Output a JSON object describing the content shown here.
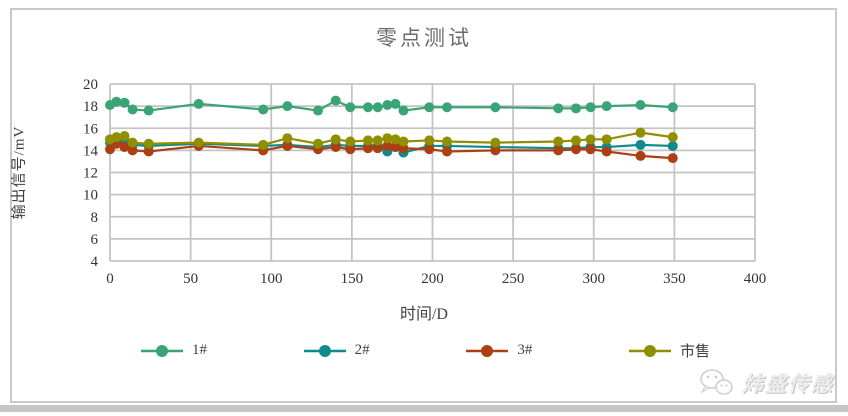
{
  "chart_data": {
    "type": "line",
    "title": "零点测试",
    "xlabel": "时间/D",
    "ylabel": "输出信号/mV",
    "xlim": [
      0,
      400
    ],
    "ylim": [
      4,
      20
    ],
    "xticks": [
      0,
      50,
      100,
      150,
      200,
      250,
      300,
      350,
      400
    ],
    "yticks": [
      4,
      6,
      8,
      10,
      12,
      14,
      16,
      18,
      20
    ],
    "grid": true,
    "legend_position": "bottom",
    "x": [
      0,
      4,
      9,
      14,
      24,
      55,
      95,
      110,
      129,
      140,
      149,
      160,
      166,
      172,
      177,
      182,
      198,
      209,
      239,
      278,
      289,
      298,
      308,
      329,
      349
    ],
    "series": [
      {
        "name": "1#",
        "color": "#3BA476",
        "values": [
          18.1,
          18.4,
          18.3,
          17.7,
          17.6,
          18.2,
          17.7,
          18.0,
          17.6,
          18.5,
          17.9,
          17.9,
          17.9,
          18.1,
          18.2,
          17.6,
          17.9,
          17.9,
          17.9,
          17.8,
          17.8,
          17.9,
          18.0,
          18.1,
          17.9
        ]
      },
      {
        "name": "2#",
        "color": "#0F8A8D",
        "values": [
          14.7,
          14.8,
          14.6,
          14.5,
          14.4,
          14.6,
          14.4,
          14.5,
          14.3,
          14.5,
          14.4,
          14.4,
          14.4,
          13.9,
          14.3,
          13.8,
          14.4,
          14.4,
          14.3,
          14.2,
          14.2,
          14.3,
          14.3,
          14.5,
          14.4
        ]
      },
      {
        "name": "3#",
        "color": "#AC4013",
        "values": [
          14.1,
          14.6,
          14.3,
          14.0,
          13.9,
          14.4,
          14.0,
          14.4,
          14.1,
          14.3,
          14.1,
          14.2,
          14.2,
          14.4,
          14.3,
          14.2,
          14.1,
          13.9,
          14.0,
          14.0,
          14.1,
          14.1,
          13.9,
          13.5,
          13.3
        ]
      },
      {
        "name": "市售",
        "color": "#8F8F00",
        "values": [
          15.0,
          15.2,
          15.3,
          14.7,
          14.6,
          14.7,
          14.5,
          15.1,
          14.6,
          15.0,
          14.8,
          14.9,
          14.9,
          15.1,
          15.0,
          14.8,
          14.9,
          14.8,
          14.7,
          14.8,
          14.9,
          15.0,
          15.0,
          15.6,
          15.2
        ]
      }
    ],
    "grid_color": "#C4C4C4",
    "tick_color": "#333333"
  },
  "watermark": {
    "text": "炜盛传感"
  }
}
